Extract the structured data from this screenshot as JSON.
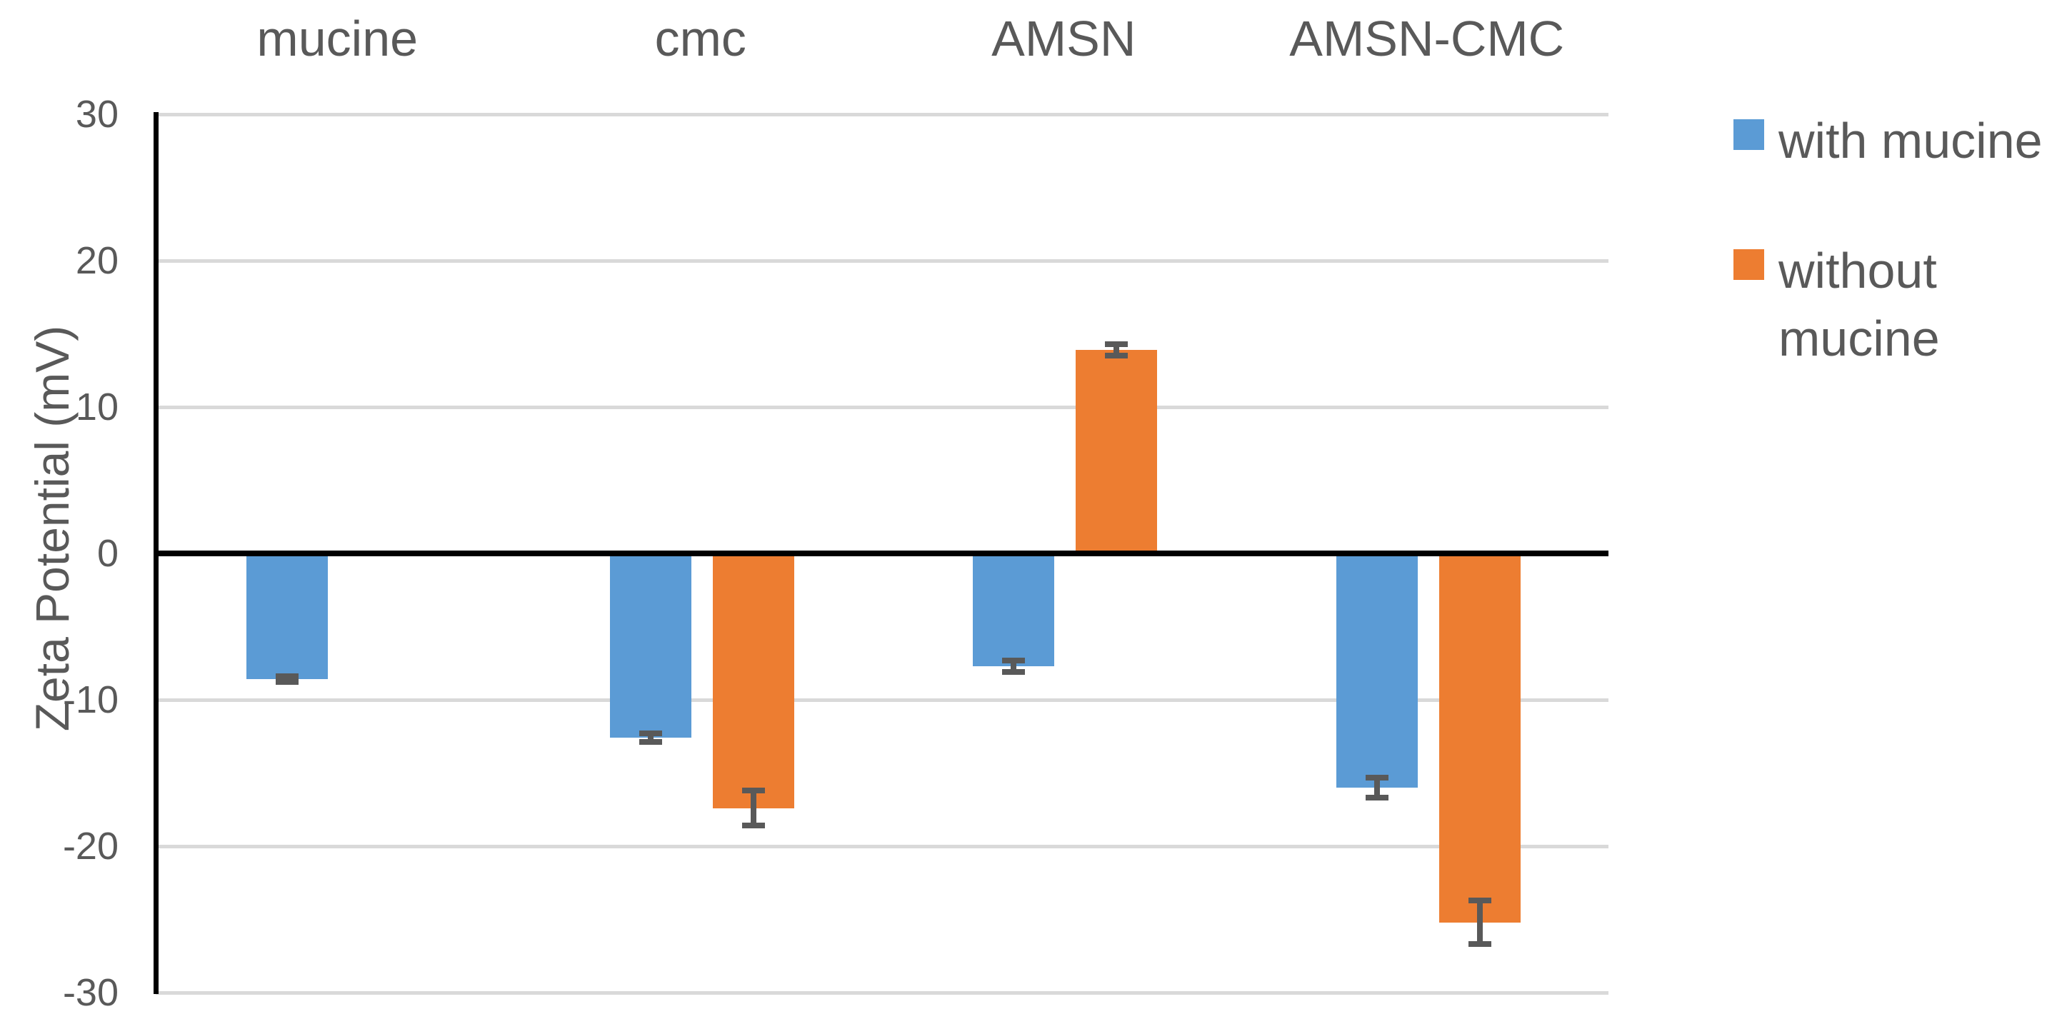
{
  "chart_data": {
    "type": "bar",
    "title": "",
    "xlabel": "",
    "ylabel": "Zeta Potential (mV)",
    "categories": [
      "mucine",
      "cmc",
      "AMSN",
      "AMSN-CMC"
    ],
    "series": [
      {
        "name": "with mucine",
        "color": "#5B9BD5",
        "values": [
          -8.6,
          -12.6,
          -7.7,
          -16.0
        ],
        "errors": [
          0.2,
          0.3,
          0.4,
          0.7
        ]
      },
      {
        "name": "without mucine",
        "color": "#ED7D31",
        "values": [
          null,
          -17.4,
          13.9,
          -25.2
        ],
        "errors": [
          null,
          1.2,
          0.4,
          1.5
        ]
      }
    ],
    "ylim": [
      -30,
      30
    ],
    "yticks": [
      30,
      20,
      10,
      0,
      -10,
      -20,
      -30
    ],
    "grid": true,
    "legend_position": "right",
    "gridline_color": "#D9D9D9",
    "axis_color": "#000000",
    "error_bar_color": "#595959",
    "text_color": "#595959"
  },
  "legend": {
    "items": [
      {
        "label": "with mucine",
        "color": "#5B9BD5"
      },
      {
        "label": "without mucine",
        "color": "#ED7D31"
      }
    ]
  }
}
